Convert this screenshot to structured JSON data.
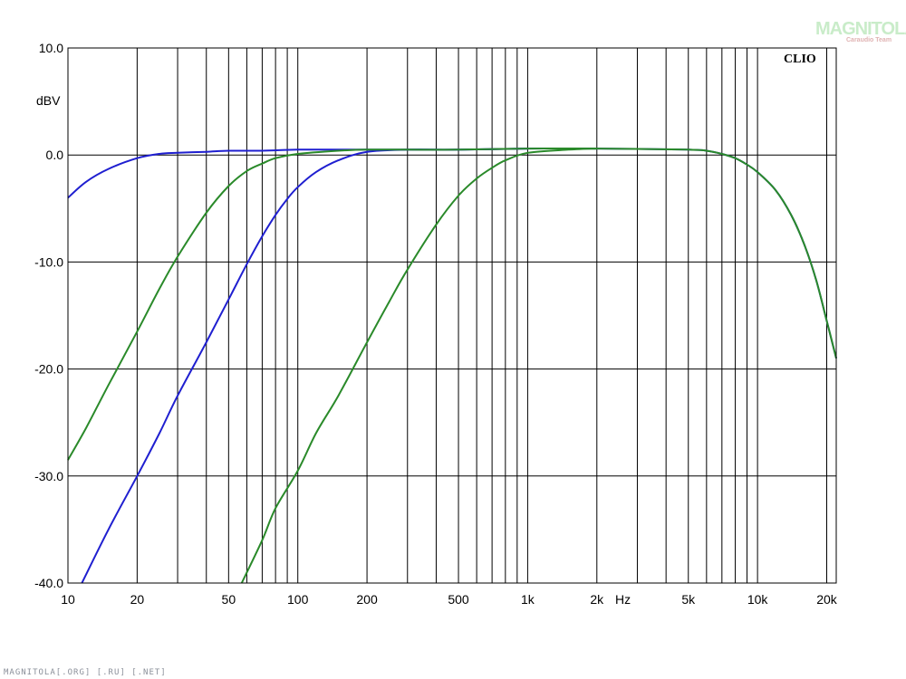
{
  "chart_data": {
    "type": "line",
    "title": "",
    "xlabel": "Hz",
    "ylabel": "dBV",
    "x_scale": "log",
    "xlim": [
      10,
      22000
    ],
    "ylim": [
      -40,
      10
    ],
    "x_ticks": [
      {
        "value": 10,
        "label": "10"
      },
      {
        "value": 20,
        "label": "20"
      },
      {
        "value": 50,
        "label": "50"
      },
      {
        "value": 100,
        "label": "100"
      },
      {
        "value": 200,
        "label": "200"
      },
      {
        "value": 500,
        "label": "500"
      },
      {
        "value": 1000,
        "label": "1k"
      },
      {
        "value": 2000,
        "label": "2k"
      },
      {
        "value": 5000,
        "label": "5k"
      },
      {
        "value": 10000,
        "label": "10k"
      },
      {
        "value": 20000,
        "label": "20k"
      }
    ],
    "y_ticks": [
      {
        "value": 10,
        "label": "10.0"
      },
      {
        "value": 0,
        "label": "0.0"
      },
      {
        "value": -10,
        "label": "-10.0"
      },
      {
        "value": -20,
        "label": "-20.0"
      },
      {
        "value": -30,
        "label": "-30.0"
      },
      {
        "value": -40,
        "label": "-40.0"
      }
    ],
    "grid": true,
    "brand": "CLIO",
    "series": [
      {
        "color": "#1f1fd0",
        "x": [
          10,
          12,
          15,
          20,
          25,
          30,
          40,
          50,
          70,
          100,
          150,
          200,
          300,
          500,
          1000,
          2000,
          5000,
          6000,
          7000,
          8000,
          9000,
          10000,
          12000,
          14000,
          16000,
          18000,
          20000,
          22000
        ],
        "y": [
          -4,
          -2.5,
          -1.3,
          -0.3,
          0.1,
          0.2,
          0.3,
          0.4,
          0.4,
          0.5,
          0.5,
          0.5,
          0.5,
          0.5,
          0.6,
          0.6,
          0.5,
          0.4,
          0.1,
          -0.3,
          -0.9,
          -1.6,
          -3.3,
          -5.6,
          -8.4,
          -11.7,
          -15.5,
          -19
        ]
      },
      {
        "color": "#1f1fd0",
        "x": [
          11.5,
          15,
          20,
          25,
          30,
          40,
          50,
          60,
          70,
          80,
          90,
          100,
          120,
          150,
          200,
          300,
          500,
          1000
        ],
        "y": [
          -40,
          -35,
          -30,
          -26,
          -22.5,
          -17.5,
          -13.5,
          -10.2,
          -7.6,
          -5.6,
          -4.1,
          -3,
          -1.6,
          -0.5,
          0.3,
          0.5,
          0.5,
          0.6
        ]
      },
      {
        "color": "#2a8a2a",
        "x": [
          10,
          12,
          15,
          20,
          25,
          30,
          40,
          50,
          60,
          70,
          80,
          100,
          150,
          200,
          300,
          500,
          1000,
          2000,
          5000,
          6000,
          7000,
          8000,
          9000,
          10000,
          12000,
          14000,
          16000,
          18000,
          20000,
          22000
        ],
        "y": [
          -28.5,
          -25.5,
          -21.5,
          -16.5,
          -12.5,
          -9.5,
          -5.4,
          -2.9,
          -1.5,
          -0.8,
          -0.3,
          0.1,
          0.4,
          0.5,
          0.5,
          0.5,
          0.6,
          0.6,
          0.5,
          0.4,
          0.1,
          -0.3,
          -0.9,
          -1.6,
          -3.3,
          -5.6,
          -8.4,
          -11.7,
          -15.5,
          -19
        ]
      },
      {
        "color": "#2a8a2a",
        "x": [
          57,
          70,
          80,
          100,
          120,
          150,
          200,
          250,
          300,
          400,
          500,
          600,
          700,
          800,
          1000,
          1500,
          2000
        ],
        "y": [
          -40,
          -36,
          -33,
          -29.5,
          -26,
          -22.5,
          -17.5,
          -13.7,
          -10.7,
          -6.5,
          -3.8,
          -2.2,
          -1.2,
          -0.5,
          0.2,
          0.5,
          0.6
        ]
      }
    ]
  },
  "watermark": {
    "footer": "MAGNITOLA[.ORG] [.RU] [.NET]",
    "logo": "MAGNITOLA",
    "logo_sub": "Caraudio Team"
  }
}
